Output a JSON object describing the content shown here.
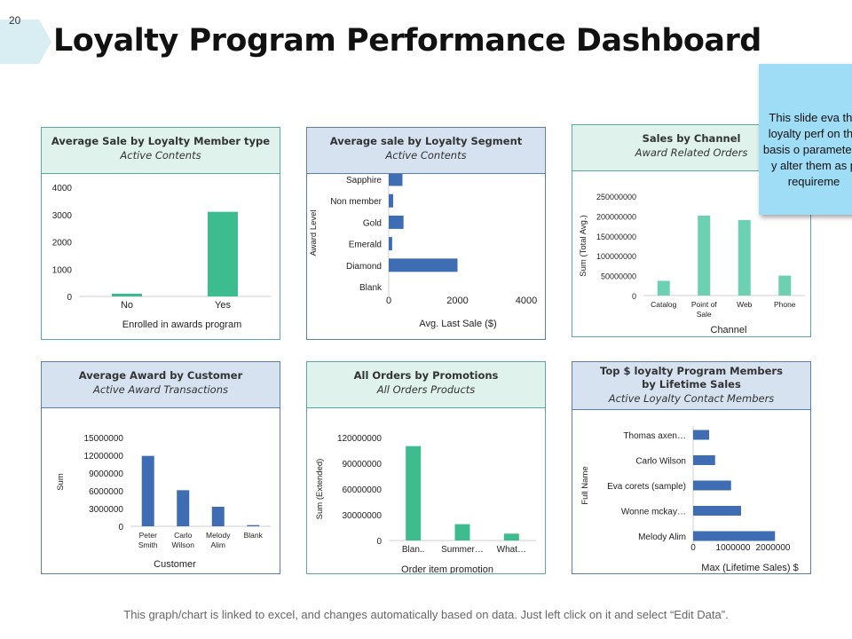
{
  "slide_number": "20",
  "title": "Loyalty Program Performance Dashboard",
  "note": "This slide eva the loyalty perf on the basis o parameters, y alter them as p requireme",
  "footer": "This graph/chart is linked to excel, and changes automatically based on data. Just left click on it and select “Edit Data”.",
  "colors": {
    "green": "#3dbd8f",
    "lightgreen": "#6dd0b0",
    "blue": "#3f6db3"
  },
  "panels": [
    {
      "title": "Average Sale by Loyalty Member type",
      "subtitle": "Active Contents"
    },
    {
      "title": "Average sale by Loyalty Segment",
      "subtitle": "Active Contents"
    },
    {
      "title": "Sales by Channel",
      "subtitle": "Award Related Orders"
    },
    {
      "title": "Average Award by Customer",
      "subtitle": "Active Award Transactions"
    },
    {
      "title": "All Orders by Promotions",
      "subtitle": "All Orders Products"
    },
    {
      "title": "Top $ loyalty Program Members",
      "title2": "by Lifetime Sales",
      "subtitle": "Active Loyalty Contact Members"
    }
  ],
  "chart_data": [
    {
      "type": "bar",
      "orientation": "vertical",
      "categories": [
        "No",
        "Yes"
      ],
      "values": [
        100,
        3100
      ],
      "xlabel": "Enrolled in awards program",
      "ylabel": "",
      "ylim": [
        0,
        4000
      ],
      "yticks": [
        "0",
        "1000",
        "2000",
        "3000",
        "4000"
      ]
    },
    {
      "type": "bar",
      "orientation": "horizontal",
      "categories": [
        "Sapphire",
        "Non member",
        "Gold",
        "Emerald",
        "Diamond",
        "Blank"
      ],
      "values": [
        400,
        130,
        430,
        100,
        2000,
        0
      ],
      "xlabel": "Avg. Last Sale ($)",
      "ylabel": "Award Level",
      "xlim": [
        0,
        4000
      ],
      "xticks": [
        "0",
        "2000",
        "4000"
      ]
    },
    {
      "type": "bar",
      "orientation": "vertical",
      "categories": [
        "Catalog",
        "Point of Sale",
        "Web",
        "Phone"
      ],
      "values": [
        37000000,
        201000000,
        190000000,
        50000000
      ],
      "xlabel": "Channel",
      "ylabel": "Sum (Total Avg.)",
      "ylim": [
        0,
        250000000
      ],
      "yticks": [
        "0",
        "50000000",
        "100000000",
        "150000000",
        "200000000",
        "250000000"
      ]
    },
    {
      "type": "bar",
      "orientation": "vertical",
      "categories": [
        "Peter Smith",
        "Carlo Wilson",
        "Melody Alim",
        "Blank"
      ],
      "values": [
        11900000,
        6100000,
        3300000,
        200000
      ],
      "xlabel": "Customer",
      "ylabel": "Sum",
      "ylim": [
        0,
        15000000
      ],
      "yticks": [
        "0",
        "3000000",
        "6000000",
        "9000000",
        "12000000",
        "15000000"
      ]
    },
    {
      "type": "bar",
      "orientation": "vertical",
      "categories": [
        "Blan..",
        "Summer…",
        "What…"
      ],
      "values": [
        110000000,
        19000000,
        8000000
      ],
      "xlabel": "Order item promotion",
      "ylabel": "Sum (Extended)",
      "ylim": [
        0,
        120000000
      ],
      "yticks": [
        "0",
        "30000000",
        "60000000",
        "90000000",
        "120000000"
      ]
    },
    {
      "type": "bar",
      "orientation": "horizontal",
      "categories": [
        "Thomas axen…",
        "Carlo Wilson",
        "Eva corets (sample)",
        "Wonne mckay…",
        "Melody Alim"
      ],
      "values": [
        400000,
        550000,
        950000,
        1200000,
        2050000
      ],
      "xlabel": "Max (Lifetime Sales) $",
      "ylabel": "Full Name",
      "xlim": [
        0,
        2000000
      ],
      "xticks": [
        "0",
        "1000000",
        "2000000"
      ]
    }
  ]
}
